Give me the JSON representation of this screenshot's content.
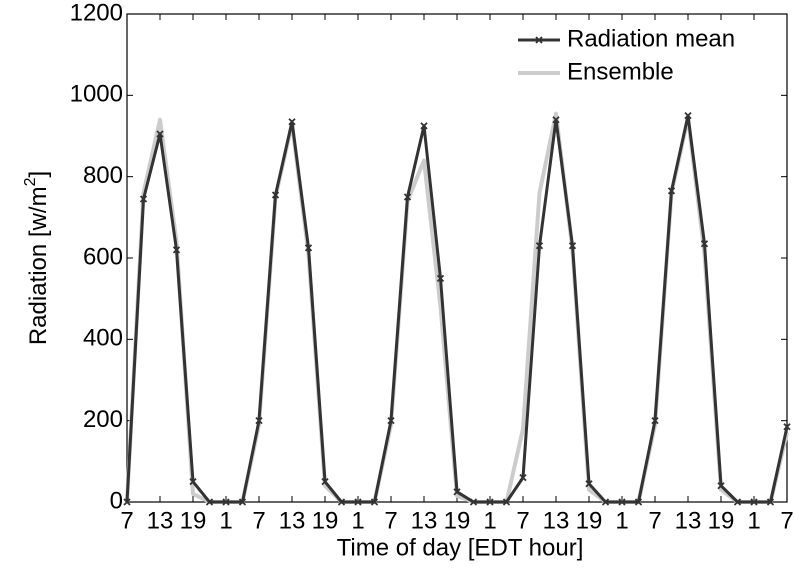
{
  "chart_data": {
    "type": "line",
    "xlabel": "Time of day [EDT hour]",
    "ylabel": {
      "text": "Radiation [w/m",
      "sup": "2",
      "end": "]"
    },
    "x": [
      0,
      3,
      6,
      9,
      12,
      15,
      18,
      21,
      24,
      27,
      30,
      33,
      36,
      39,
      42,
      45,
      48,
      51,
      54,
      57,
      60,
      63,
      66,
      69,
      72,
      75,
      78,
      81,
      84,
      87,
      90,
      93,
      96,
      99,
      102,
      105,
      108,
      111,
      114,
      117,
      120
    ],
    "series": [
      {
        "name": "Ensemble",
        "color": "#cccccc",
        "marker": false,
        "values": [
          0,
          760,
          940,
          640,
          20,
          0,
          0,
          0,
          190,
          750,
          930,
          610,
          40,
          0,
          0,
          0,
          190,
          740,
          840,
          480,
          15,
          0,
          0,
          0,
          180,
          760,
          955,
          620,
          30,
          0,
          0,
          0,
          190,
          760,
          945,
          610,
          30,
          0,
          0,
          0,
          170
        ]
      },
      {
        "name": "Radiation mean",
        "color": "#333333",
        "marker": true,
        "values": [
          0,
          745,
          905,
          620,
          50,
          0,
          0,
          0,
          200,
          755,
          935,
          625,
          50,
          0,
          0,
          0,
          200,
          750,
          925,
          550,
          25,
          0,
          0,
          0,
          60,
          630,
          940,
          630,
          45,
          0,
          0,
          0,
          200,
          765,
          950,
          635,
          40,
          0,
          0,
          0,
          185
        ]
      }
    ],
    "xlim": [
      0,
      120
    ],
    "xticks": [
      {
        "value": 0,
        "label": "7"
      },
      {
        "value": 6,
        "label": "13"
      },
      {
        "value": 12,
        "label": "19"
      },
      {
        "value": 18,
        "label": "1"
      },
      {
        "value": 24,
        "label": "7"
      },
      {
        "value": 30,
        "label": "13"
      },
      {
        "value": 36,
        "label": "19"
      },
      {
        "value": 42,
        "label": "1"
      },
      {
        "value": 48,
        "label": "7"
      },
      {
        "value": 54,
        "label": "13"
      },
      {
        "value": 60,
        "label": "19"
      },
      {
        "value": 66,
        "label": "1"
      },
      {
        "value": 72,
        "label": "7"
      },
      {
        "value": 78,
        "label": "13"
      },
      {
        "value": 84,
        "label": "19"
      },
      {
        "value": 90,
        "label": "1"
      },
      {
        "value": 96,
        "label": "7"
      },
      {
        "value": 102,
        "label": "13"
      },
      {
        "value": 108,
        "label": "19"
      },
      {
        "value": 114,
        "label": "1"
      },
      {
        "value": 120,
        "label": "7"
      }
    ],
    "ylim": [
      0,
      1200
    ],
    "yticks": [
      0,
      200,
      400,
      600,
      800,
      1000,
      1200
    ],
    "legend": "upper right"
  }
}
